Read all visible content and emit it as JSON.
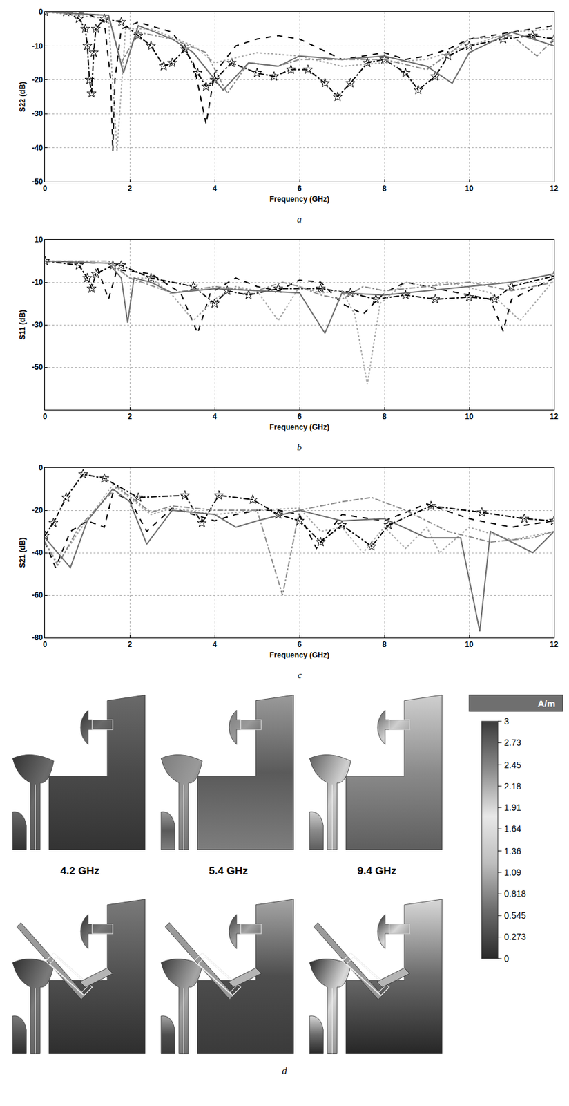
{
  "chart_data": [
    {
      "type": "line",
      "caption": "a",
      "x_label": "Frequency (GHz)",
      "y_label": "S22 (dB)",
      "xlim": [
        0,
        12
      ],
      "xticks": [
        0,
        2,
        4,
        6,
        8,
        10,
        12
      ],
      "ylim": [
        -50,
        0
      ],
      "yticks": [
        -50,
        -40,
        -30,
        -20,
        -10,
        0
      ],
      "grid": true,
      "series": [
        {
          "color": "#000000",
          "line_style": "dashdot",
          "marker": "star",
          "x": [
            0,
            0.5,
            0.8,
            0.95,
            1.0,
            1.05,
            1.1,
            1.15,
            1.2,
            1.4,
            1.8,
            2.2,
            2.5,
            2.8,
            3.0,
            3.3,
            3.6,
            3.8,
            4.0,
            4.4,
            5.0,
            5.4,
            5.8,
            6.2,
            6.6,
            6.9,
            7.2,
            7.6,
            8.0,
            8.5,
            8.8,
            9.2,
            9.5,
            10.0,
            10.8,
            11.5,
            12
          ],
          "values": [
            0,
            0,
            -2,
            -5,
            -10,
            -20,
            -24,
            -12,
            -5,
            -2,
            -3,
            -7,
            -10,
            -16,
            -15,
            -11,
            -18,
            -22,
            -20,
            -15,
            -18,
            -19,
            -17,
            -17,
            -21,
            -25,
            -21,
            -15,
            -14,
            -18,
            -23,
            -19,
            -13,
            -10,
            -8,
            -7,
            -8
          ]
        },
        {
          "color": "#000000",
          "line_style": "dash",
          "x": [
            0,
            1,
            1.4,
            1.55,
            1.6,
            1.65,
            1.8,
            2.2,
            3.0,
            3.5,
            3.8,
            4.0,
            4.5,
            5,
            5.5,
            6,
            6.5,
            7,
            7.5,
            8,
            8.5,
            9,
            9.5,
            10,
            11,
            12
          ],
          "values": [
            0,
            -0.5,
            -3,
            -20,
            -41,
            -20,
            -5,
            -3,
            -6,
            -15,
            -33,
            -18,
            -10,
            -8,
            -7,
            -8,
            -11,
            -14,
            -13,
            -12,
            -14,
            -13,
            -11,
            -8,
            -6,
            -4
          ]
        },
        {
          "color": "#a6a6a6",
          "line_style": "dot",
          "x": [
            0,
            1.5,
            1.7,
            1.9,
            2.5,
            3.5,
            4,
            5,
            6,
            7,
            8,
            9,
            10,
            11,
            12
          ],
          "values": [
            0,
            -2,
            -41,
            -5,
            -5,
            -10,
            -15,
            -12,
            -13,
            -16,
            -15,
            -14,
            -10,
            -6,
            -5
          ]
        },
        {
          "color": "#8c8c8c",
          "line_style": "dashdot",
          "x": [
            0,
            1.5,
            1.8,
            2.2,
            3,
            3.8,
            4.3,
            4.8,
            5.5,
            6,
            7,
            8,
            9,
            10,
            11,
            11.6,
            12
          ],
          "values": [
            0,
            -1,
            -15,
            -6,
            -8,
            -12,
            -24,
            -15,
            -16,
            -14,
            -14,
            -14,
            -17,
            -8,
            -7,
            -13,
            -8
          ]
        },
        {
          "color": "#6e6e6e",
          "line_style": "solid",
          "x": [
            0,
            1.5,
            1.85,
            2.2,
            3,
            3.5,
            4.2,
            4.8,
            5.5,
            6,
            7,
            8,
            9,
            9.6,
            10,
            11,
            11.5,
            12
          ],
          "values": [
            0,
            -1,
            -18,
            -4,
            -8,
            -12,
            -23,
            -15,
            -16,
            -13,
            -14,
            -13,
            -16,
            -21,
            -12,
            -6,
            -8,
            -10
          ]
        }
      ]
    },
    {
      "type": "line",
      "caption": "b",
      "x_label": "Frequency (GHz)",
      "y_label": "S11 (dB)",
      "xlim": [
        0,
        12
      ],
      "xticks": [
        0,
        2,
        4,
        6,
        8,
        10,
        12
      ],
      "ylim": [
        -70,
        10
      ],
      "yticks": [
        -50,
        -30,
        -10,
        10
      ],
      "grid": true,
      "series": [
        {
          "color": "#000000",
          "line_style": "dashdot",
          "marker": "star",
          "x": [
            0,
            0.8,
            1.0,
            1.1,
            1.2,
            1.6,
            1.8,
            2.5,
            3.5,
            4.0,
            4.3,
            4.8,
            5.5,
            6.5,
            7.2,
            7.8,
            8.5,
            9.2,
            10,
            10.6,
            11,
            12
          ],
          "values": [
            0,
            -2,
            -8,
            -13,
            -6,
            -2,
            -2,
            -8,
            -12,
            -20,
            -14,
            -16,
            -13,
            -13,
            -15,
            -18,
            -16,
            -18,
            -17,
            -18,
            -12,
            -7
          ]
        },
        {
          "color": "#000000",
          "line_style": "dash",
          "x": [
            0,
            1.2,
            1.5,
            1.7,
            2.5,
            3.2,
            3.6,
            3.9,
            4.5,
            5,
            5.5,
            6,
            6.5,
            7,
            7.5,
            8,
            8.5,
            9.5,
            10.5,
            10.8,
            11,
            12
          ],
          "values": [
            0,
            -1,
            -18,
            -4,
            -6,
            -15,
            -34,
            -15,
            -8,
            -12,
            -14,
            -9,
            -10,
            -20,
            -25,
            -15,
            -10,
            -14,
            -18,
            -33,
            -18,
            -8
          ]
        },
        {
          "color": "#a6a6a6",
          "line_style": "dot",
          "x": [
            0,
            1.5,
            2,
            2.5,
            3,
            3.5,
            4,
            4.5,
            5,
            5.5,
            6,
            6.5,
            7,
            7.3,
            7.6,
            7.9,
            8.5,
            9,
            9.5,
            10.5,
            11.2,
            12
          ],
          "values": [
            0,
            -1,
            -8,
            -8,
            -16,
            -28,
            -18,
            -12,
            -14,
            -28,
            -12,
            -15,
            -14,
            -25,
            -58,
            -20,
            -10,
            -12,
            -10,
            -15,
            -28,
            -9
          ]
        },
        {
          "color": "#8c8c8c",
          "line_style": "dashdot",
          "x": [
            0,
            1.5,
            2,
            3,
            4,
            5,
            5.6,
            6,
            6.5,
            7,
            7.5,
            8,
            9,
            10,
            11,
            12
          ],
          "values": [
            0,
            0,
            -8,
            -15,
            -12,
            -14,
            -10,
            -12,
            -16,
            -18,
            -12,
            -14,
            -12,
            -10,
            -14,
            -10
          ]
        },
        {
          "color": "#6e6e6e",
          "line_style": "solid",
          "x": [
            0,
            1.5,
            1.8,
            1.95,
            2.1,
            2.5,
            3,
            4,
            5,
            6,
            6.6,
            7,
            8,
            9,
            10,
            11,
            12
          ],
          "values": [
            0,
            -1,
            -8,
            -29,
            -8,
            -10,
            -15,
            -13,
            -14,
            -15,
            -34,
            -15,
            -16,
            -14,
            -12,
            -10,
            -6
          ]
        }
      ]
    },
    {
      "type": "line",
      "caption": "c",
      "x_label": "Frequency (GHz)",
      "y_label": "S21 (dB)",
      "xlim": [
        0,
        12
      ],
      "xticks": [
        0,
        2,
        4,
        6,
        8,
        10,
        12
      ],
      "ylim": [
        -80,
        0
      ],
      "yticks": [
        -80,
        -60,
        -40,
        -20,
        0
      ],
      "grid": true,
      "series": [
        {
          "color": "#000000",
          "line_style": "dashdot",
          "marker": "star",
          "x": [
            0,
            0.2,
            0.5,
            0.9,
            1.4,
            2.2,
            3.3,
            3.7,
            4.1,
            4.9,
            5.5,
            6,
            6.5,
            7,
            7.7,
            8.1,
            9.1,
            10.3,
            11.3,
            12
          ],
          "values": [
            -32,
            -26,
            -14,
            -3,
            -5,
            -14,
            -13,
            -26,
            -13,
            -15,
            -22,
            -25,
            -35,
            -27,
            -37,
            -27,
            -18,
            -21,
            -24,
            -25
          ]
        },
        {
          "color": "#000000",
          "line_style": "dash",
          "x": [
            0,
            0.25,
            0.6,
            1,
            1.4,
            1.6,
            2,
            2.4,
            3,
            4,
            4.5,
            5,
            5.5,
            6,
            6.4,
            7,
            8,
            9,
            10,
            11,
            12
          ],
          "values": [
            -35,
            -47,
            -30,
            -25,
            -28,
            -12,
            -15,
            -30,
            -19,
            -25,
            -22,
            -20,
            -20,
            -22,
            -38,
            -22,
            -25,
            -17,
            -24,
            -28,
            -25
          ]
        },
        {
          "color": "#a6a6a6",
          "line_style": "dot",
          "x": [
            0,
            0.3,
            0.8,
            1.6,
            2.5,
            3,
            4,
            5,
            6,
            6.5,
            7,
            7.5,
            8,
            8.5,
            9,
            9.3,
            10,
            11,
            12
          ],
          "values": [
            -35,
            -45,
            -30,
            -8,
            -22,
            -19,
            -22,
            -20,
            -19,
            -30,
            -28,
            -40,
            -28,
            -38,
            -28,
            -40,
            -28,
            -34,
            -30
          ]
        },
        {
          "color": "#8c8c8c",
          "line_style": "dashdot",
          "x": [
            0,
            0.3,
            0.8,
            1.7,
            2.5,
            3,
            4,
            5,
            5.6,
            6,
            7,
            7.7,
            8.5,
            9.5,
            10.5,
            11.5,
            12
          ],
          "values": [
            -35,
            -46,
            -28,
            -9,
            -21,
            -18,
            -20,
            -20,
            -60,
            -20,
            -16,
            -14,
            -20,
            -30,
            -35,
            -33,
            -30
          ]
        },
        {
          "color": "#6e6e6e",
          "line_style": "solid",
          "x": [
            0,
            0.6,
            1,
            1.6,
            2,
            2.4,
            3,
            4,
            4.5,
            5,
            6,
            7,
            8,
            9,
            9.8,
            10.25,
            10.5,
            11.5,
            12
          ],
          "values": [
            -33,
            -47,
            -25,
            -10,
            -16,
            -36,
            -20,
            -22,
            -28,
            -25,
            -20,
            -25,
            -24,
            -33,
            -33,
            -77,
            -30,
            -40,
            -30
          ]
        }
      ]
    }
  ],
  "field_plots": {
    "caption": "d",
    "frequencies": [
      "4.2 GHz",
      "5.4 GHz",
      "9.4 GHz"
    ],
    "colorbar": {
      "title": "A/m",
      "range": [
        0,
        3
      ],
      "ticks": [
        3,
        2.73,
        2.45,
        2.18,
        1.91,
        1.64,
        1.36,
        1.09,
        0.818,
        0.545,
        0.273,
        0
      ]
    }
  }
}
